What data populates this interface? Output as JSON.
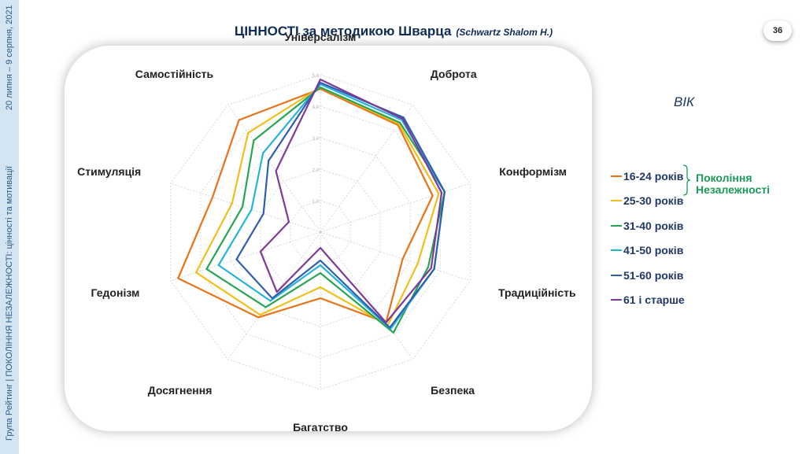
{
  "slide": {
    "title": "ЦІННОСТІ за методикою Шварца",
    "title_sub": "(Schwartz Shalom H.)",
    "page_number": "36",
    "side_date": "20 липня – 9 серпня, 2021",
    "side_footer": "Група Рейтинг | ПОКОЛІННЯ НЕЗАЛЕЖНОСТІ: цінності та мотивації",
    "legend_heading": "ВІК",
    "generation_label_line1": "Покоління",
    "generation_label_line2": "Незалежності"
  },
  "colors": {
    "sidebar": "#d3e5f3",
    "title": "#0f2c55",
    "legend_text": "#1f3864",
    "generation": "#1a9a59",
    "grid": "#cfcfcf"
  },
  "chart_data": {
    "type": "radar",
    "axes": [
      "Універсалізм",
      "Доброта",
      "Конформізм",
      "Традиційність",
      "Безпека",
      "Багатство",
      "Досягнення",
      "Гедонізм",
      "Стимуляція",
      "Самостійність"
    ],
    "range": [
      0,
      5
    ],
    "tick_labels": [
      "1.0",
      "2.0",
      "3.0",
      "4.0",
      "5.0"
    ],
    "series": [
      {
        "name": "16-24 років",
        "color": "#e8731a",
        "values": [
          4.55,
          4.2,
          3.75,
          2.75,
          3.55,
          2.1,
          3.35,
          4.75,
          3.6,
          4.4
        ]
      },
      {
        "name": "25-30 років",
        "color": "#f2be1a",
        "values": [
          4.6,
          4.25,
          3.95,
          3.25,
          3.65,
          1.75,
          3.25,
          4.15,
          2.95,
          3.9
        ]
      },
      {
        "name": "31-40 років",
        "color": "#27a553",
        "values": [
          4.6,
          4.3,
          4.15,
          3.6,
          3.95,
          1.3,
          2.95,
          3.8,
          2.6,
          3.6
        ]
      },
      {
        "name": "41-50 років",
        "color": "#25b3da",
        "values": [
          4.7,
          4.4,
          4.15,
          3.8,
          3.8,
          1.05,
          2.7,
          3.4,
          2.3,
          3.1
        ]
      },
      {
        "name": "51-60 років",
        "color": "#2f5fae",
        "values": [
          4.75,
          4.5,
          4.15,
          3.8,
          3.75,
          0.9,
          2.6,
          2.8,
          1.9,
          2.8
        ]
      },
      {
        "name": "61 і старше",
        "color": "#7e3a98",
        "values": [
          4.85,
          4.45,
          4.05,
          3.7,
          3.55,
          0.5,
          2.35,
          2.0,
          1.05,
          2.4
        ]
      }
    ],
    "grid": true,
    "legend_position": "right"
  }
}
